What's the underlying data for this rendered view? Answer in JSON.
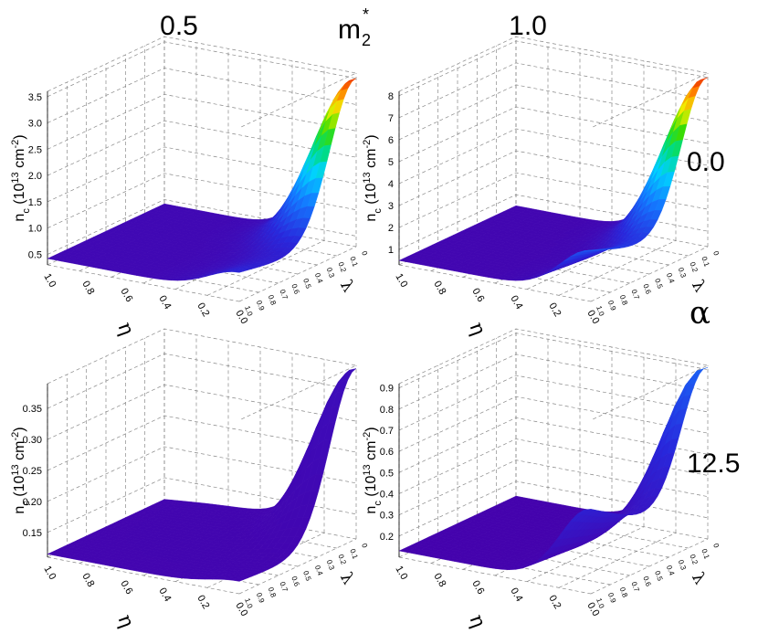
{
  "header": {
    "m2_label": "m",
    "m2_sub": "2",
    "m2_sup": "*",
    "col_left": "0.5",
    "col_right": "1.0"
  },
  "side": {
    "alpha_label": "α",
    "row_top": "0.0",
    "row_bottom": "12.5"
  },
  "axes_text": {
    "eta": "η",
    "lambda": "λ",
    "zlabel_main": "n",
    "zlabel_sub": "c",
    "zlabel_units_a": " (10",
    "zlabel_units_sup": "13",
    "zlabel_units_b": " cm",
    "zlabel_units_sup2": "-2",
    "zlabel_units_c": ")",
    "eta_ticks": [
      "1.0",
      "0.8",
      "0.6",
      "0.4",
      "0.2",
      "0.0"
    ],
    "lambda_ticks": [
      "1.0",
      "0.9",
      "0.8",
      "0.7",
      "0.6",
      "0.5",
      "0.4",
      "0.3",
      "0.2",
      "0.1",
      "0"
    ]
  },
  "chart_data": [
    {
      "type": "surface3d",
      "m2_star": "0.5",
      "alpha": "0.0",
      "zticks": [
        "0.5",
        "1.0",
        "1.5",
        "2.0",
        "2.5",
        "3.0",
        "3.5"
      ],
      "zlim": [
        0.3,
        3.6
      ],
      "surface": {
        "base": 0.42,
        "peak": 3.5,
        "peak_eta": 0.0,
        "peak_lambda": 0.0,
        "corner_eta0_lambda1": 0.85
      }
    },
    {
      "type": "surface3d",
      "m2_star": "1.0",
      "alpha": "0.0",
      "zticks": [
        "1",
        "2",
        "3",
        "4",
        "5",
        "6",
        "7",
        "8"
      ],
      "zlim": [
        0.3,
        8.2
      ],
      "surface": {
        "base": 0.5,
        "peak": 8.0,
        "peak_eta": 0.0,
        "peak_lambda": 0.0,
        "corner_eta0_lambda1": 2.6
      }
    },
    {
      "type": "surface3d",
      "m2_star": "0.5",
      "alpha": "12.5",
      "zticks": [
        "0.15",
        "0.20",
        "0.25",
        "0.30",
        "0.35"
      ],
      "zlim": [
        0.11,
        0.39
      ],
      "surface": {
        "base": 0.115,
        "peak": 0.385,
        "peak_eta": 0.0,
        "peak_lambda": 0.0,
        "corner_eta0_lambda1": 0.13
      }
    },
    {
      "type": "surface3d",
      "m2_star": "1.0",
      "alpha": "12.5",
      "zticks": [
        "0.2",
        "0.3",
        "0.4",
        "0.5",
        "0.6",
        "0.7",
        "0.8",
        "0.9"
      ],
      "zlim": [
        0.1,
        0.92
      ],
      "surface": {
        "base": 0.13,
        "peak": 0.91,
        "peak_eta": 0.0,
        "peak_lambda": 0.0,
        "corner_eta0_lambda1": 0.5
      }
    }
  ]
}
